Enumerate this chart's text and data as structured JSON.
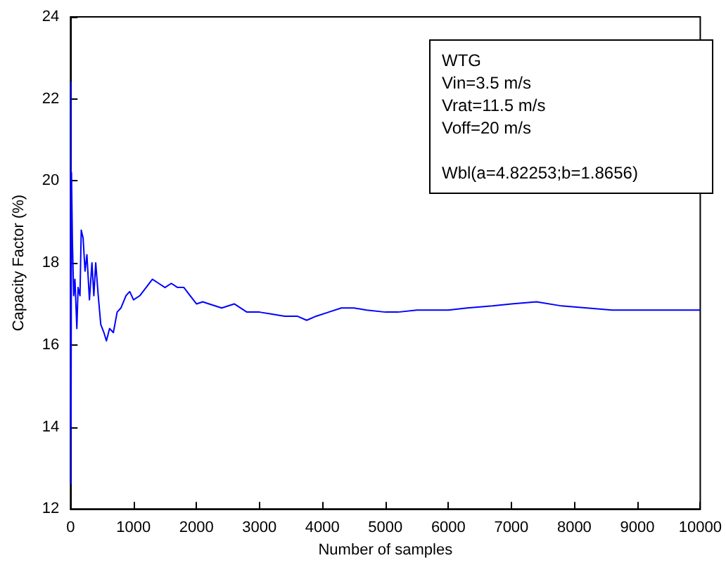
{
  "chart_data": {
    "type": "line",
    "xlabel": "Number of samples",
    "ylabel": "Capacity Factor (%)",
    "xlim": [
      0,
      10000
    ],
    "xticks": [
      0,
      1000,
      2000,
      3000,
      4000,
      5000,
      6000,
      7000,
      8000,
      9000,
      10000
    ],
    "ylim": [
      12,
      24
    ],
    "yticks": [
      12,
      14,
      16,
      18,
      20,
      22,
      24
    ],
    "grid": false,
    "annotations": [
      "WTG",
      "Vin=3.5 m/s",
      "Vrat=11.5 m/s",
      "Voff=20 m/s",
      "Wbl(a=4.82253;b=1.8656)"
    ],
    "series": [
      {
        "color": "#0000ff",
        "x": [
          1,
          3,
          8,
          15,
          30,
          50,
          70,
          100,
          120,
          150,
          170,
          200,
          230,
          260,
          300,
          340,
          370,
          400,
          440,
          480,
          530,
          570,
          620,
          680,
          740,
          800,
          880,
          940,
          1000,
          1100,
          1200,
          1300,
          1400,
          1500,
          1600,
          1700,
          1800,
          1900,
          2000,
          2100,
          2200,
          2400,
          2600,
          2800,
          3000,
          3200,
          3400,
          3600,
          3750,
          3900,
          4100,
          4300,
          4500,
          4700,
          5000,
          5200,
          5500,
          5800,
          6000,
          6300,
          6700,
          7000,
          7400,
          7800,
          8200,
          8600,
          9000,
          9500,
          10000
        ],
        "values": [
          12.6,
          22.4,
          14,
          20.2,
          18.5,
          17.2,
          17.6,
          16.4,
          17.4,
          17.2,
          18.8,
          18.6,
          17.8,
          18.2,
          17.1,
          18,
          17.2,
          18,
          17.2,
          16.5,
          16.3,
          16.1,
          16.4,
          16.3,
          16.8,
          16.9,
          17.2,
          17.3,
          17.1,
          17.2,
          17.4,
          17.6,
          17.5,
          17.4,
          17.5,
          17.4,
          17.4,
          17.2,
          17,
          17.05,
          17,
          16.9,
          17,
          16.8,
          16.8,
          16.75,
          16.7,
          16.7,
          16.6,
          16.7,
          16.8,
          16.9,
          16.9,
          16.85,
          16.8,
          16.8,
          16.85,
          16.85,
          16.85,
          16.9,
          16.95,
          17,
          17.05,
          16.95,
          16.9,
          16.85,
          16.85,
          16.85,
          16.85
        ]
      }
    ]
  }
}
